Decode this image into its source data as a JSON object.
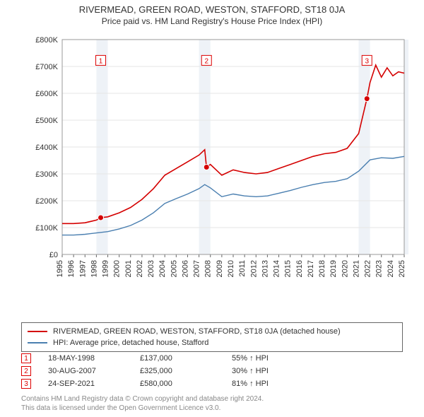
{
  "title": "RIVERMEAD, GREEN ROAD, WESTON, STAFFORD, ST18 0JA",
  "subtitle": "Price paid vs. HM Land Registry's House Price Index (HPI)",
  "chart": {
    "type": "line",
    "background_color": "#ffffff",
    "grid_color": "#e6e6e6",
    "x_axis": {
      "min": 1995,
      "max": 2025,
      "ticks": [
        1995,
        1996,
        1997,
        1998,
        1999,
        2000,
        2001,
        2002,
        2003,
        2004,
        2005,
        2006,
        2007,
        2008,
        2009,
        2010,
        2011,
        2012,
        2013,
        2014,
        2015,
        2016,
        2017,
        2018,
        2019,
        2020,
        2021,
        2022,
        2023,
        2024,
        2025
      ],
      "label_fontsize": 11
    },
    "y_axis": {
      "min": 0,
      "max": 800000,
      "ticks": [
        0,
        100000,
        200000,
        300000,
        400000,
        500000,
        600000,
        700000,
        800000
      ],
      "tick_labels": [
        "£0",
        "£100K",
        "£200K",
        "£300K",
        "£400K",
        "£500K",
        "£600K",
        "£700K",
        "£800K"
      ],
      "label_fontsize": 11
    },
    "shaded_years": [
      1998,
      2007,
      2021,
      2025
    ],
    "shade_color": "#eef2f7",
    "series": [
      {
        "name": "property",
        "label": "RIVERMEAD, GREEN ROAD, WESTON, STAFFORD, ST18 0JA (detached house)",
        "color": "#d40000",
        "line_width": 1.6,
        "data": [
          [
            1995,
            115000
          ],
          [
            1996,
            115000
          ],
          [
            1997,
            118000
          ],
          [
            1998,
            128000
          ],
          [
            1998.4,
            137000
          ],
          [
            1999,
            140000
          ],
          [
            2000,
            155000
          ],
          [
            2001,
            175000
          ],
          [
            2002,
            205000
          ],
          [
            2003,
            245000
          ],
          [
            2004,
            295000
          ],
          [
            2005,
            320000
          ],
          [
            2006,
            345000
          ],
          [
            2007,
            370000
          ],
          [
            2007.5,
            390000
          ],
          [
            2007.66,
            325000
          ],
          [
            2008,
            335000
          ],
          [
            2009,
            295000
          ],
          [
            2010,
            315000
          ],
          [
            2011,
            305000
          ],
          [
            2012,
            300000
          ],
          [
            2013,
            305000
          ],
          [
            2014,
            320000
          ],
          [
            2015,
            335000
          ],
          [
            2016,
            350000
          ],
          [
            2017,
            365000
          ],
          [
            2018,
            375000
          ],
          [
            2019,
            380000
          ],
          [
            2020,
            395000
          ],
          [
            2021,
            450000
          ],
          [
            2021.73,
            580000
          ],
          [
            2022,
            640000
          ],
          [
            2022.5,
            705000
          ],
          [
            2023,
            660000
          ],
          [
            2023.5,
            695000
          ],
          [
            2024,
            665000
          ],
          [
            2024.5,
            680000
          ],
          [
            2025,
            675000
          ]
        ]
      },
      {
        "name": "hpi",
        "label": "HPI: Average price, detached house, Stafford",
        "color": "#4a7fb0",
        "line_width": 1.4,
        "data": [
          [
            1995,
            72000
          ],
          [
            1996,
            72000
          ],
          [
            1997,
            75000
          ],
          [
            1998,
            80000
          ],
          [
            1999,
            85000
          ],
          [
            2000,
            95000
          ],
          [
            2001,
            108000
          ],
          [
            2002,
            128000
          ],
          [
            2003,
            155000
          ],
          [
            2004,
            190000
          ],
          [
            2005,
            208000
          ],
          [
            2006,
            225000
          ],
          [
            2007,
            245000
          ],
          [
            2007.5,
            260000
          ],
          [
            2008,
            248000
          ],
          [
            2009,
            215000
          ],
          [
            2010,
            225000
          ],
          [
            2011,
            218000
          ],
          [
            2012,
            215000
          ],
          [
            2013,
            218000
          ],
          [
            2014,
            228000
          ],
          [
            2015,
            238000
          ],
          [
            2016,
            250000
          ],
          [
            2017,
            260000
          ],
          [
            2018,
            268000
          ],
          [
            2019,
            272000
          ],
          [
            2020,
            282000
          ],
          [
            2021,
            310000
          ],
          [
            2022,
            352000
          ],
          [
            2023,
            360000
          ],
          [
            2024,
            358000
          ],
          [
            2025,
            365000
          ]
        ]
      }
    ],
    "event_markers": [
      {
        "id": "1",
        "year": 1998.38,
        "y": 720000
      },
      {
        "id": "2",
        "year": 2007.66,
        "y": 720000
      },
      {
        "id": "3",
        "year": 2021.73,
        "y": 720000
      }
    ],
    "sale_points": [
      {
        "year": 1998.38,
        "price": 137000,
        "color": "#d40000"
      },
      {
        "year": 2007.66,
        "price": 325000,
        "color": "#d40000"
      },
      {
        "year": 2021.73,
        "price": 580000,
        "color": "#d40000"
      }
    ]
  },
  "legend": {
    "rows": [
      {
        "color": "#d40000",
        "label": "RIVERMEAD, GREEN ROAD, WESTON, STAFFORD, ST18 0JA (detached house)"
      },
      {
        "color": "#4a7fb0",
        "label": "HPI: Average price, detached house, Stafford"
      }
    ]
  },
  "sales_table": [
    {
      "id": "1",
      "date": "18-MAY-1998",
      "price": "£137,000",
      "pct": "55% ↑ HPI"
    },
    {
      "id": "2",
      "date": "30-AUG-2007",
      "price": "£325,000",
      "pct": "30% ↑ HPI"
    },
    {
      "id": "3",
      "date": "24-SEP-2021",
      "price": "£580,000",
      "pct": "81% ↑ HPI"
    }
  ],
  "attribution": {
    "line1": "Contains HM Land Registry data © Crown copyright and database right 2024.",
    "line2": "This data is licensed under the Open Government Licence v3.0."
  }
}
